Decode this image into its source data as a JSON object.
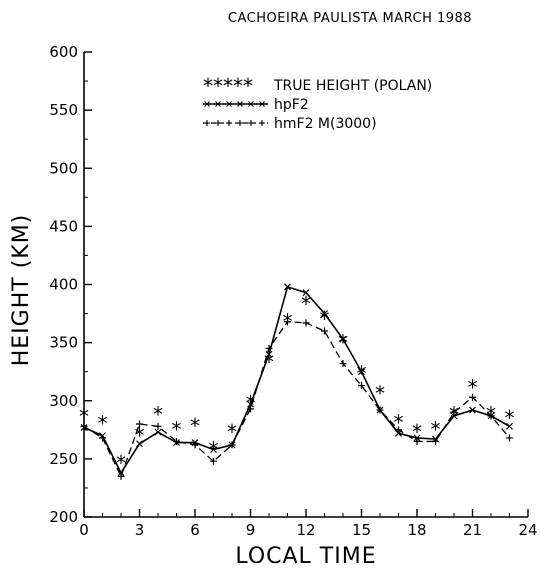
{
  "chart_data": {
    "type": "line",
    "title": "CACHOEIRA PAULISTA MARCH 1988",
    "xlabel": "LOCAL TIME",
    "ylabel": "HEIGHT (KM)",
    "xlim": [
      0,
      24
    ],
    "ylim": [
      200,
      600
    ],
    "xticks": [
      0,
      3,
      6,
      9,
      12,
      15,
      18,
      21,
      24
    ],
    "yticks": [
      200,
      250,
      300,
      350,
      400,
      450,
      500,
      550,
      600
    ],
    "grid": false,
    "legend_position": "top-right",
    "series": [
      {
        "name": "TRUE HEIGHT (POLAN)",
        "style": "star markers",
        "x": [
          0,
          1,
          2,
          3,
          4,
          5,
          6,
          7,
          8,
          9,
          10,
          11,
          12,
          13,
          14,
          15,
          16,
          17,
          18,
          19,
          20,
          21,
          22,
          23
        ],
        "y": [
          288,
          282,
          248,
          272,
          290,
          277,
          280,
          260,
          275,
          300,
          335,
          370,
          385,
          372,
          352,
          325,
          308,
          283,
          275,
          277,
          290,
          313,
          290,
          287
        ]
      },
      {
        "name": "hpF2",
        "style": "solid line with x markers",
        "x": [
          0,
          1,
          2,
          3,
          4,
          5,
          6,
          7,
          8,
          9,
          10,
          11,
          12,
          13,
          14,
          15,
          16,
          17,
          18,
          19,
          20,
          21,
          22,
          23
        ],
        "y": [
          277,
          270,
          238,
          263,
          273,
          264,
          264,
          258,
          262,
          297,
          340,
          398,
          393,
          375,
          353,
          325,
          292,
          272,
          268,
          267,
          287,
          292,
          287,
          278
        ]
      },
      {
        "name": "hmF2 M(3000)",
        "style": "dashed line with + markers",
        "x": [
          0,
          1,
          2,
          3,
          4,
          5,
          6,
          7,
          8,
          9,
          10,
          11,
          12,
          13,
          14,
          15,
          16,
          17,
          18,
          19,
          20,
          21,
          22,
          23
        ],
        "y": [
          278,
          268,
          235,
          280,
          278,
          265,
          262,
          248,
          262,
          293,
          345,
          368,
          367,
          360,
          332,
          313,
          292,
          275,
          265,
          265,
          290,
          303,
          287,
          268
        ]
      }
    ]
  }
}
